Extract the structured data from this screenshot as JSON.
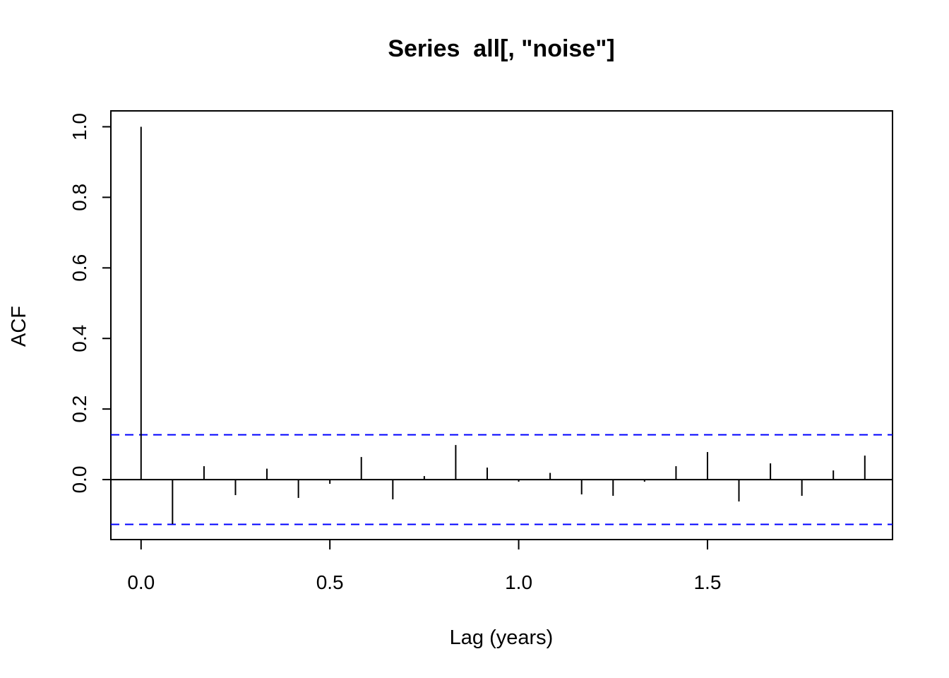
{
  "chart_data": {
    "type": "bar",
    "title": "Series  all[, \"noise\"]",
    "xlabel": "Lag (years)",
    "ylabel": "ACF",
    "xlim": [
      -0.08,
      1.99
    ],
    "ylim": [
      -0.17,
      1.045
    ],
    "x_ticks": [
      "0.0",
      "0.5",
      "1.0",
      "1.5"
    ],
    "y_ticks": [
      "0.0",
      "0.2",
      "0.4",
      "0.6",
      "0.8",
      "1.0"
    ],
    "grid": false,
    "confidence_bound": 0.127,
    "confidence_color": "#0000ff",
    "bar_color": "#000000",
    "lags": [
      0.0,
      0.0833,
      0.1667,
      0.25,
      0.3333,
      0.4167,
      0.5,
      0.5833,
      0.6667,
      0.75,
      0.8333,
      0.9167,
      1.0,
      1.0833,
      1.1667,
      1.25,
      1.3333,
      1.4167,
      1.5,
      1.5833,
      1.6667,
      1.75,
      1.8333,
      1.9167
    ],
    "values": [
      1.0,
      -0.126,
      0.038,
      -0.044,
      0.031,
      -0.052,
      -0.012,
      0.064,
      -0.056,
      0.01,
      0.098,
      0.034,
      -0.006,
      0.019,
      -0.042,
      -0.046,
      -0.006,
      0.038,
      0.078,
      -0.062,
      0.046,
      -0.046,
      0.026,
      0.068
    ]
  }
}
